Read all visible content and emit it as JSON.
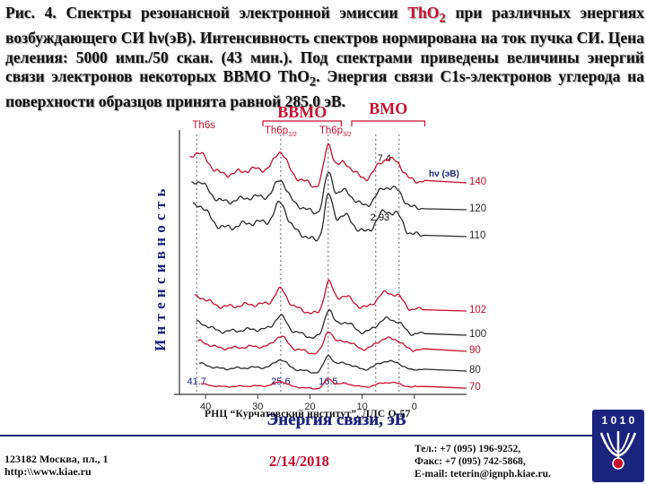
{
  "caption": {
    "part1": "Рис. 4. Спектры резонансной электронной эмиссии ",
    "formula": "ThO",
    "formula_sub": "2",
    "part2": " при различных энергиях возбуждающего СИ hν(эВ). Интенсивность спектров нормирована на ток пучка СИ. Цена деления: 5000 имп./50 скан. (43 мин.). Под спектрами приведены величины энергий связи электронов некоторых ВВМО ThO",
    "part2_sub": "2",
    "part3": ". Энергия связи C1s-электронов углерода на поверхности образцов принята равной 285.0 эВ."
  },
  "chart_data": {
    "type": "line",
    "xlabel": "Энергия связи, эВ",
    "ylabel": "И н т е н с и в н о с т ь",
    "xlim": [
      45,
      -10
    ],
    "xticks": [
      40,
      30,
      20,
      10,
      0
    ],
    "grid": false,
    "region_labels": [
      {
        "text": "ВВМО",
        "color": "#c8102e",
        "x_from": 29,
        "x_to": 14
      },
      {
        "text": "ВМО",
        "color": "#c8102e",
        "x_from": 12,
        "x_to": -2
      }
    ],
    "peak_labels": [
      {
        "text": "Th6s",
        "color": "#c8102e",
        "x": 41.7
      },
      {
        "text": "Th6p",
        "sub": "1/2",
        "color": "#c8102e",
        "x": 25.6
      },
      {
        "text": "Th6p",
        "sub": "3/2",
        "color": "#c8102e",
        "x": 16.5
      }
    ],
    "annotations": [
      {
        "text": "7.4",
        "x": 7.4
      },
      {
        "text": "2.93",
        "x": 2.93
      },
      {
        "text": "41.7",
        "x": 41.7
      },
      {
        "text": "25.6",
        "x": 25.6
      },
      {
        "text": "16.5",
        "x": 16.5
      }
    ],
    "legend_title": "hν (эВ)",
    "series": [
      {
        "name": "140",
        "color": "#c8102e"
      },
      {
        "name": "120",
        "color": "#2a2a2a"
      },
      {
        "name": "110",
        "color": "#2a2a2a"
      },
      {
        "name": "102",
        "color": "#c8102e"
      },
      {
        "name": "100",
        "color": "#2a2a2a"
      },
      {
        "name": "90",
        "color": "#c8102e"
      },
      {
        "name": "80",
        "color": "#2a2a2a"
      },
      {
        "name": "70",
        "color": "#c8102e"
      }
    ]
  },
  "footer": {
    "organization": "РНЦ “Курчатовский институт”,   ЛЛС О-57",
    "address_line1": "123182 Москва, пл., 1",
    "address_line2": "http:\\\\www.kiae.ru",
    "date": "2/14/2018",
    "phone": "Тел.:   +7 (095) 196-9252,",
    "fax": "Факс:  +7 (095) 742-5868,",
    "email": "E-mail: teterin@ignph.kiae.ru."
  },
  "logo": {
    "text": "1 0 1 0"
  },
  "colors": {
    "red": "#c8102e",
    "navy": "#1a237e",
    "black": "#2a2a2a"
  }
}
